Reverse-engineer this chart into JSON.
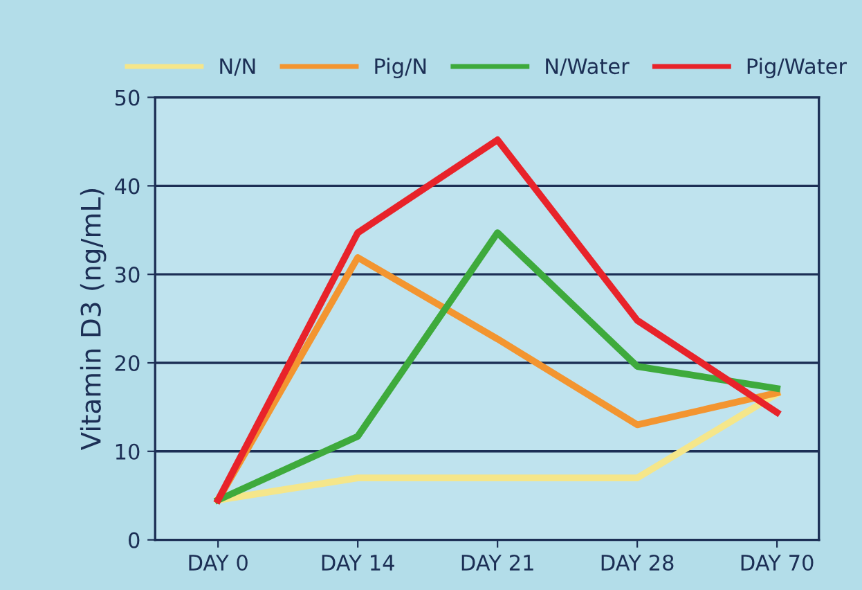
{
  "chart_data": {
    "type": "line",
    "ylabel": "Vitamin D3 (ng/mL)",
    "categories": [
      "DAY 0",
      "DAY 14",
      "DAY 21",
      "DAY 28",
      "DAY 70"
    ],
    "series": [
      {
        "name": "N/N",
        "color": "#f5e68a",
        "values": [
          4.5,
          7,
          7,
          7,
          16.5
        ]
      },
      {
        "name": "Pig/N",
        "color": "#f39530",
        "values": [
          4.5,
          31.9,
          22.7,
          13,
          16.6
        ]
      },
      {
        "name": "N/Water",
        "color": "#3eaa3c",
        "values": [
          4.5,
          11.7,
          34.7,
          19.6,
          17.1
        ]
      },
      {
        "name": "Pig/Water",
        "color": "#e8232a",
        "values": [
          4.5,
          34.7,
          45.2,
          24.8,
          14.4
        ]
      }
    ],
    "ylim": [
      0,
      50
    ],
    "yticks": [
      0,
      10,
      20,
      30,
      40,
      50
    ],
    "grid": "y",
    "legend": "top",
    "marker": "none",
    "line_style": "solid"
  }
}
